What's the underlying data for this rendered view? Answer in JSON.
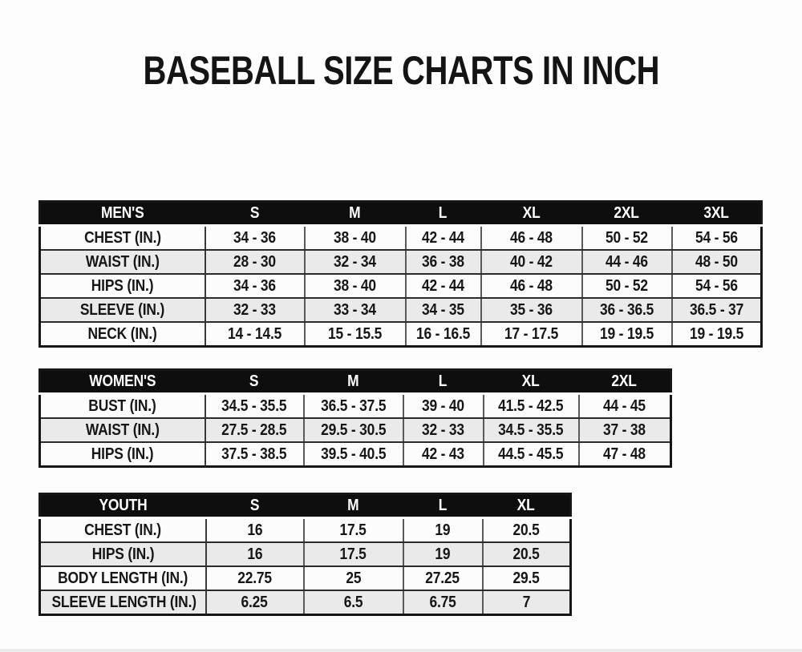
{
  "title": "BASEBALL SIZE CHARTS IN INCH",
  "colors": {
    "header_bg": "#0e0e0e",
    "header_text": "#ffffff",
    "row_bg": "#fcfcfc",
    "row_alt_bg": "#eaeaea",
    "border": "#2b2b2b",
    "text": "#161616"
  },
  "chart_data": [
    {
      "type": "table",
      "title": "MEN'S",
      "columns": [
        "S",
        "M",
        "L",
        "XL",
        "2XL",
        "3XL"
      ],
      "rows": [
        {
          "label": "CHEST (IN.)",
          "values": [
            "34 - 36",
            "38 - 40",
            "42 - 44",
            "46 - 48",
            "50 - 52",
            "54 - 56"
          ]
        },
        {
          "label": "WAIST (IN.)",
          "values": [
            "28 - 30",
            "32 - 34",
            "36 - 38",
            "40 - 42",
            "44 - 46",
            "48 - 50"
          ]
        },
        {
          "label": "HIPS (IN.)",
          "values": [
            "34 - 36",
            "38 - 40",
            "42 - 44",
            "46 - 48",
            "50 - 52",
            "54 - 56"
          ]
        },
        {
          "label": "SLEEVE (IN.)",
          "values": [
            "32 - 33",
            "33 - 34",
            "34 - 35",
            "35 - 36",
            "36 - 36.5",
            "36.5 - 37"
          ]
        },
        {
          "label": "NECK (IN.)",
          "values": [
            "14 - 14.5",
            "15 - 15.5",
            "16 - 16.5",
            "17 - 17.5",
            "19 - 19.5",
            "19 - 19.5"
          ]
        }
      ]
    },
    {
      "type": "table",
      "title": "WOMEN'S",
      "columns": [
        "S",
        "M",
        "L",
        "XL",
        "2XL"
      ],
      "rows": [
        {
          "label": "BUST (IN.)",
          "values": [
            "34.5 - 35.5",
            "36.5 - 37.5",
            "39 - 40",
            "41.5 - 42.5",
            "44 - 45"
          ]
        },
        {
          "label": "WAIST (IN.)",
          "values": [
            "27.5 - 28.5",
            "29.5 - 30.5",
            "32 - 33",
            "34.5 - 35.5",
            "37 - 38"
          ]
        },
        {
          "label": "HIPS (IN.)",
          "values": [
            "37.5 - 38.5",
            "39.5 - 40.5",
            "42 - 43",
            "44.5 - 45.5",
            "47 - 48"
          ]
        }
      ]
    },
    {
      "type": "table",
      "title": "YOUTH",
      "columns": [
        "S",
        "M",
        "L",
        "XL"
      ],
      "rows": [
        {
          "label": "CHEST (IN.)",
          "values": [
            "16",
            "17.5",
            "19",
            "20.5"
          ]
        },
        {
          "label": "HIPS (IN.)",
          "values": [
            "16",
            "17.5",
            "19",
            "20.5"
          ]
        },
        {
          "label": "BODY LENGTH (IN.)",
          "values": [
            "22.75",
            "25",
            "27.25",
            "29.5"
          ]
        },
        {
          "label": "SLEEVE LENGTH (IN.)",
          "values": [
            "6.25",
            "6.5",
            "6.75",
            "7"
          ]
        }
      ]
    }
  ]
}
